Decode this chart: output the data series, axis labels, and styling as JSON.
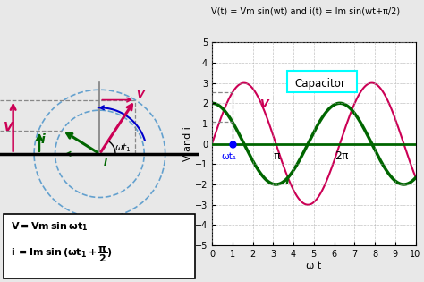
{
  "title": "V(t) = Vm sin(wt) and i(t) = Im sin(wt+π/2)",
  "bg_color": "#e8e8e8",
  "Vm": 3.0,
  "Im": 2.0,
  "wt1": 1.0,
  "x_max": 10,
  "ylim_plot": [
    -5,
    5
  ],
  "xlabel": "ω t",
  "ylabel": "V and i",
  "capacitor_label": "Capacitor",
  "V_color": "#cc0055",
  "i_color": "#006600",
  "phasor_bg": "#e8e8e8",
  "plot_bg": "#ffffff",
  "grid_color": "#aaaaaa",
  "dashed_circle_color": "#5599cc",
  "pi_label": "π",
  "two_pi_label": "2π",
  "wt1_label": "ωt₁",
  "formula_line1": "V = Vm sin ωt₁",
  "formula_line2": "i  = Im sin (ωt₁+",
  "pi_frac": "π/2",
  "arc_color": "#0000cc",
  "angle_color": "#000000"
}
